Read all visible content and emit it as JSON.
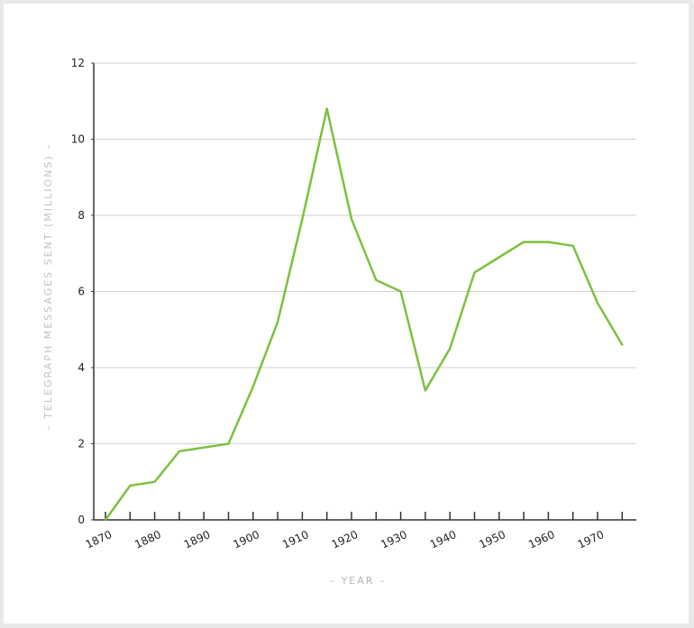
{
  "chart_data": {
    "type": "line",
    "title": "",
    "xlabel": "– YEAR –",
    "ylabel": "– TELEGRAPH MESSAGES SENT (MILLIONS) –",
    "x_ticks": [
      "1870",
      "1880",
      "1890",
      "1900",
      "1910",
      "1920",
      "1930",
      "1940",
      "1950",
      "1960",
      "1970"
    ],
    "y_ticks": [
      "0",
      "2",
      "4",
      "6",
      "8",
      "10",
      "12"
    ],
    "xlim": [
      1870,
      1976
    ],
    "ylim": [
      0,
      12
    ],
    "grid": "horizontal",
    "line_color": "#7dc13e",
    "series": [
      {
        "name": "",
        "x": [
          1870,
          1875,
          1880,
          1885,
          1890,
          1895,
          1900,
          1905,
          1910,
          1915,
          1920,
          1925,
          1930,
          1935,
          1940,
          1945,
          1950,
          1955,
          1960,
          1965,
          1970,
          1975
        ],
        "values": [
          0,
          0.9,
          1.0,
          1.8,
          1.9,
          2.0,
          3.5,
          5.2,
          7.9,
          10.8,
          7.9,
          6.3,
          6.0,
          3.4,
          4.5,
          6.5,
          6.9,
          7.3,
          7.3,
          7.2,
          5.7,
          4.6
        ]
      }
    ]
  }
}
